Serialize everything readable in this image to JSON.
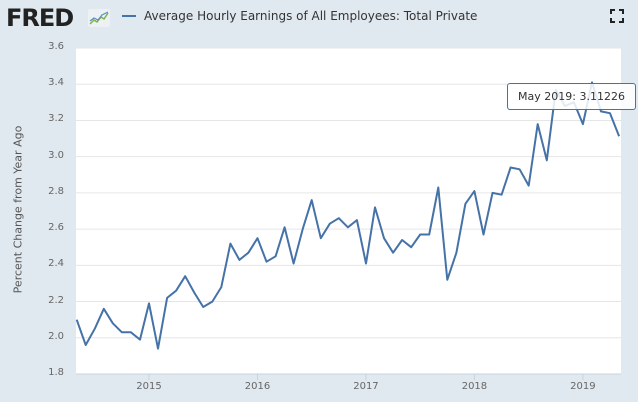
{
  "header": {
    "logo": "FRED",
    "logo_icon": "line-graph-icon",
    "legend_label": "Average Hourly Earnings of All Employees: Total Private",
    "legend_color": "#4572a7",
    "fullscreen_icon": "fullscreen-icon"
  },
  "axes": {
    "ylabel": "Percent Change from Year Ago",
    "yticks": [
      "3.6",
      "3.4",
      "3.2",
      "3.0",
      "2.8",
      "2.6",
      "2.4",
      "2.2",
      "2.0",
      "1.8"
    ],
    "xticks": [
      "2015",
      "2016",
      "2017",
      "2018",
      "2019"
    ]
  },
  "tooltip": {
    "label": "May 2019:",
    "value": "3.11226"
  },
  "chart_data": {
    "type": "line",
    "title": "Average Hourly Earnings of All Employees: Total Private",
    "xlabel": "",
    "ylabel": "Percent Change from Year Ago",
    "ylim": [
      1.8,
      3.6
    ],
    "grid": true,
    "legend_position": "top",
    "series": [
      {
        "name": "Average Hourly Earnings of All Employees: Total Private",
        "color": "#4572a7",
        "x": [
          "2014-05",
          "2014-06",
          "2014-07",
          "2014-08",
          "2014-09",
          "2014-10",
          "2014-11",
          "2014-12",
          "2015-01",
          "2015-02",
          "2015-03",
          "2015-04",
          "2015-05",
          "2015-06",
          "2015-07",
          "2015-08",
          "2015-09",
          "2015-10",
          "2015-11",
          "2015-12",
          "2016-01",
          "2016-02",
          "2016-03",
          "2016-04",
          "2016-05",
          "2016-06",
          "2016-07",
          "2016-08",
          "2016-09",
          "2016-10",
          "2016-11",
          "2016-12",
          "2017-01",
          "2017-02",
          "2017-03",
          "2017-04",
          "2017-05",
          "2017-06",
          "2017-07",
          "2017-08",
          "2017-09",
          "2017-10",
          "2017-11",
          "2017-12",
          "2018-01",
          "2018-02",
          "2018-03",
          "2018-04",
          "2018-05",
          "2018-06",
          "2018-07",
          "2018-08",
          "2018-09",
          "2018-10",
          "2018-11",
          "2018-12",
          "2019-01",
          "2019-02",
          "2019-03",
          "2019-04",
          "2019-05"
        ],
        "values": [
          2.1,
          1.96,
          2.05,
          2.16,
          2.08,
          2.03,
          2.03,
          1.99,
          2.19,
          1.94,
          2.22,
          2.26,
          2.34,
          2.25,
          2.17,
          2.2,
          2.28,
          2.52,
          2.43,
          2.47,
          2.55,
          2.42,
          2.45,
          2.61,
          2.41,
          2.6,
          2.76,
          2.55,
          2.63,
          2.66,
          2.61,
          2.65,
          2.41,
          2.72,
          2.55,
          2.47,
          2.54,
          2.5,
          2.57,
          2.57,
          2.83,
          2.32,
          2.47,
          2.74,
          2.81,
          2.57,
          2.8,
          2.79,
          2.94,
          2.93,
          2.84,
          3.18,
          2.98,
          3.37,
          3.28,
          3.3,
          3.18,
          3.41,
          3.25,
          3.24,
          3.11226
        ]
      }
    ],
    "annotations": [
      {
        "x": "2019-05",
        "text": "May 2019: 3.11226"
      }
    ]
  }
}
